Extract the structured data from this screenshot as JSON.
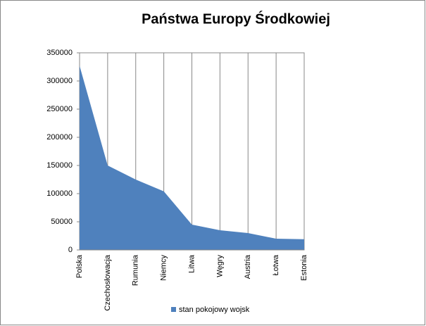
{
  "chart_data": {
    "type": "area",
    "title": "Państwa Europy Środkowiej",
    "categories": [
      "Polska",
      "Czechosłowacja",
      "Rumunia",
      "Niemcy",
      "Litwa",
      "Węgry",
      "Austria",
      "Łotwa",
      "Estonia"
    ],
    "series": [
      {
        "name": "stan pokojowy wojsk",
        "color": "#4f81bd",
        "values": [
          327000,
          150000,
          125000,
          104000,
          45000,
          35000,
          30000,
          20000,
          19000
        ]
      }
    ],
    "ylim": [
      0,
      350000
    ],
    "yticks": [
      0,
      50000,
      100000,
      150000,
      200000,
      250000,
      300000,
      350000
    ],
    "grid": "vertical",
    "legend": "bottom"
  }
}
